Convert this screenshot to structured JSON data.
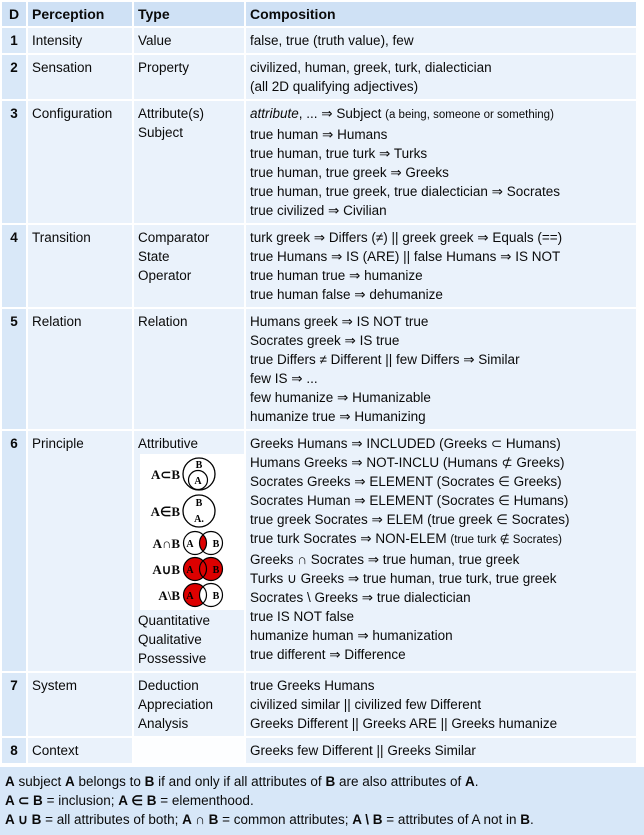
{
  "colors": {
    "header_bg": "#cfe1f5",
    "cell_bg": "#eaf2fb",
    "d_bg": "#d9e8f8",
    "footer_bg": "#d7e7f8",
    "venn_red": "#dd0000"
  },
  "table": {
    "columns": [
      "D",
      "Perception",
      "Type",
      "Composition"
    ],
    "rows": [
      {
        "d": "1",
        "perception": "Intensity",
        "type": [
          "Value"
        ],
        "composition": [
          [
            {
              "t": "false, true (truth value), few"
            }
          ]
        ]
      },
      {
        "d": "2",
        "perception": "Sensation",
        "type": [
          "Property"
        ],
        "composition": [
          [
            {
              "t": "civilized, human, greek, turk, dialectician"
            }
          ],
          [
            {
              "t": "(all 2D qualifying adjectives)"
            }
          ]
        ]
      },
      {
        "d": "3",
        "perception": "Configuration",
        "type": [
          "Attribute(s)",
          "Subject"
        ],
        "composition": [
          [
            {
              "t": "attribute",
              "i": true
            },
            {
              "t": ", ... ⇒ Subject "
            },
            {
              "t": "(a being, someone or something)",
              "s": true
            }
          ],
          [
            {
              "t": "true human ⇒ Humans"
            }
          ],
          [
            {
              "t": "true human, true turk ⇒ Turks"
            }
          ],
          [
            {
              "t": "true human, true greek ⇒ Greeks"
            }
          ],
          [
            {
              "t": "true human, true greek, true dialectician ⇒ Socrates"
            }
          ],
          [
            {
              "t": "true civilized ⇒ Civilian"
            }
          ]
        ]
      },
      {
        "d": "4",
        "perception": "Transition",
        "type": [
          "Comparator",
          "State",
          "Operator"
        ],
        "composition": [
          [
            {
              "t": "turk greek ⇒ Differs (≠) || greek greek ⇒ Equals (==)"
            }
          ],
          [
            {
              "t": "true Humans ⇒ IS (ARE) || false Humans ⇒ IS NOT"
            }
          ],
          [
            {
              "t": "true human true ⇒ humanize"
            }
          ],
          [
            {
              "t": "true human false ⇒ dehumanize"
            }
          ]
        ]
      },
      {
        "d": "5",
        "perception": "Relation",
        "type": [
          "Relation"
        ],
        "composition": [
          [
            {
              "t": "Humans greek ⇒ IS NOT true"
            }
          ],
          [
            {
              "t": "Socrates greek ⇒ IS true"
            }
          ],
          [
            {
              "t": "true Differs ≠ Different || few Differs ⇒ Similar"
            }
          ],
          [
            {
              "t": "few IS ⇒ ..."
            }
          ],
          [
            {
              "t": "few humanize ⇒ Humanizable"
            }
          ],
          [
            {
              "t": "humanize true ⇒ Humanizing"
            }
          ]
        ]
      },
      {
        "d": "6",
        "perception": "Principle",
        "type": [
          "Attributive",
          {
            "venn": true
          },
          "Quantitative",
          "Qualitative",
          "Possessive"
        ],
        "composition": [
          [
            {
              "t": "Greeks Humans ⇒ INCLUDED (Greeks ⊂ Humans)"
            }
          ],
          [
            {
              "t": "Humans Greeks ⇒ NOT-INCLU (Humans ⊄ Greeks)"
            }
          ],
          [
            {
              "t": "Socrates Greeks ⇒ ELEMENT (Socrates ∈ Greeks)"
            }
          ],
          [
            {
              "t": "Socrates Human ⇒ ELEMENT (Socrates ∈ Humans)"
            }
          ],
          [
            {
              "t": "true greek Socrates ⇒ ELEM (true greek ∈ Socrates)"
            }
          ],
          [
            {
              "t": "true turk Socrates ⇒ NON-ELEM "
            },
            {
              "t": "(true turk ∉ Socrates)",
              "s": true
            }
          ],
          [
            {
              "t": "Greeks ∩ Socrates ⇒ true human, true greek"
            }
          ],
          [
            {
              "t": "Turks ∪ Greeks ⇒ true human, true turk, true greek"
            }
          ],
          [
            {
              "t": "Socrates \\ Greeks ⇒ true dialectician"
            }
          ],
          [
            {
              "t": "true IS NOT false"
            }
          ],
          [
            {
              "t": "humanize human ⇒ humanization"
            }
          ],
          [
            {
              "t": "true different ⇒ Difference"
            }
          ]
        ]
      },
      {
        "d": "7",
        "perception": "System",
        "type": [
          "Deduction",
          "Appreciation",
          "Analysis"
        ],
        "composition": [
          [
            {
              "t": "true Greeks Humans"
            }
          ],
          [
            {
              "t": "civilized similar || civilized few Different"
            }
          ],
          [
            {
              "t": "Greeks Different || Greeks ARE || Greeks humanize"
            }
          ]
        ]
      },
      {
        "d": "8",
        "perception": "Context",
        "type": [],
        "composition": [
          [
            {
              "t": "Greeks few Different || Greeks Similar"
            }
          ]
        ]
      }
    ]
  },
  "venn": {
    "items": [
      {
        "label": "A⊂B",
        "kind": "subset",
        "outer": "B",
        "inner": "A"
      },
      {
        "label": "A∈B",
        "kind": "element",
        "outer": "B",
        "inner": "A."
      },
      {
        "label": "A∩B",
        "kind": "intersection",
        "left": "A",
        "right": "B"
      },
      {
        "label": "A∪B",
        "kind": "union",
        "left": "A",
        "right": "B"
      },
      {
        "label": "A\\B",
        "kind": "difference",
        "left": "A",
        "right": "B"
      }
    ]
  },
  "footer": {
    "lines": [
      [
        {
          "t": "A",
          "b": true
        },
        {
          "t": " subject "
        },
        {
          "t": "A",
          "b": true
        },
        {
          "t": " belongs to "
        },
        {
          "t": "B",
          "b": true
        },
        {
          "t": " if and only if all attributes of "
        },
        {
          "t": "B",
          "b": true
        },
        {
          "t": " are also attributes of "
        },
        {
          "t": "A",
          "b": true
        },
        {
          "t": "."
        }
      ],
      [
        {
          "t": "A ⊂ B",
          "b": true
        },
        {
          "t": " = inclusion; "
        },
        {
          "t": "A ∈ B",
          "b": true
        },
        {
          "t": " = elementhood."
        }
      ],
      [
        {
          "t": "A ∪ B",
          "b": true
        },
        {
          "t": " = all attributes of both; "
        },
        {
          "t": "A ∩ B",
          "b": true
        },
        {
          "t": " = common attributes; "
        },
        {
          "t": "A \\ B",
          "b": true
        },
        {
          "t": " = attributes of A not in "
        },
        {
          "t": "B",
          "b": true
        },
        {
          "t": "."
        }
      ]
    ]
  }
}
